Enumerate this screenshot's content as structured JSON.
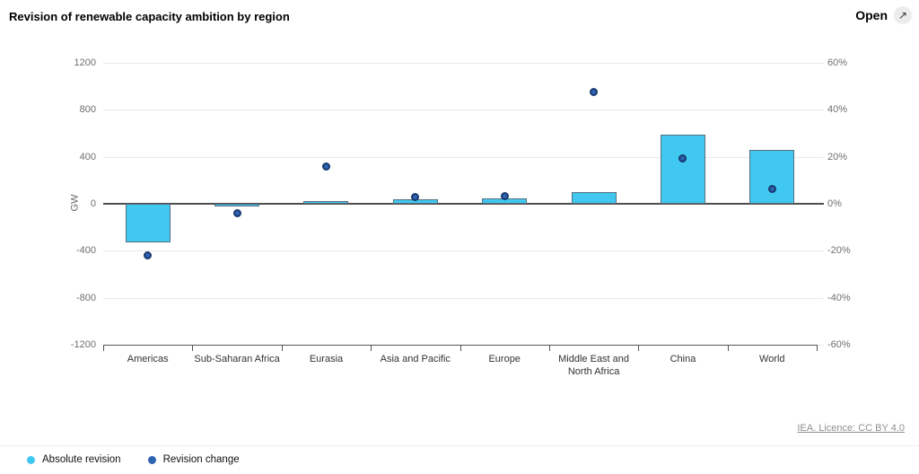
{
  "header": {
    "title": "Revision of renewable capacity ambition by region",
    "open_label": "Open",
    "open_icon": "↗"
  },
  "footer": {
    "licence": "IEA. Licence: CC BY 4.0"
  },
  "legend": [
    {
      "label": "Absolute revision",
      "color": "#41c8f1"
    },
    {
      "label": "Revision change",
      "color": "#2f63b2"
    }
  ],
  "chart_data": {
    "type": "bar",
    "title": "Revision of renewable capacity ambition by region",
    "categories": [
      "Americas",
      "Sub-Saharan Africa",
      "Eurasia",
      "Asia and Pacific",
      "Europe",
      "Middle East and North Africa",
      "China",
      "World"
    ],
    "series": [
      {
        "name": "Absolute revision",
        "type": "bar",
        "axis": "left",
        "unit": "GW",
        "color": "#41c8f1",
        "border_color": "#58707e",
        "values": [
          -330,
          -20,
          25,
          35,
          45,
          100,
          590,
          460
        ]
      },
      {
        "name": "Revision change",
        "type": "scatter",
        "axis": "right",
        "unit": "%",
        "color": "#2f63b2",
        "border_color": "#17396e",
        "values": [
          -22,
          -4,
          16,
          3,
          3.3,
          47.5,
          19.5,
          6.5
        ]
      }
    ],
    "left_axis": {
      "label": "GW",
      "min": -1200,
      "max": 1200,
      "tick_step": 400
    },
    "right_axis": {
      "min": -60,
      "max": 60,
      "tick_step": 20,
      "suffix": "%"
    },
    "grid": true,
    "legend_position": "bottom-left"
  }
}
